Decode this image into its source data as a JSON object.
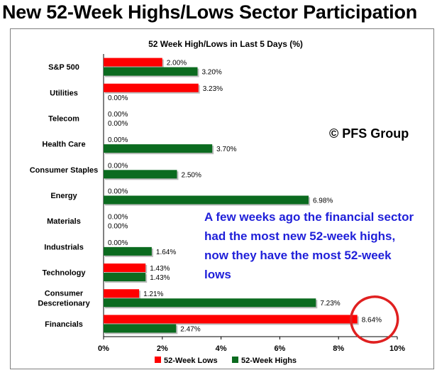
{
  "headline": "New 52-Week Highs/Lows Sector Participation",
  "copyright": "© PFS Group",
  "annotation": "A few weeks ago the financial sector had the most new 52-week highs, now they have the most 52-week lows",
  "colors": {
    "lows": "#ff0000",
    "highs": "#0b6b1f",
    "circle": "#e02020",
    "annotation": "#1f1fd9"
  },
  "chart_data": {
    "type": "bar",
    "orientation": "horizontal",
    "title": "52 Week High/Lows in Last 5 Days (%)",
    "categories": [
      "S&P 500",
      "Utilities",
      "Telecom",
      "Health Care",
      "Consumer Staples",
      "Energy",
      "Materials",
      "Industrials",
      "Technology",
      "Consumer Descretionary",
      "Financials"
    ],
    "category_lines": [
      [
        "S&P 500"
      ],
      [
        "Utilities"
      ],
      [
        "Telecom"
      ],
      [
        "Health Care"
      ],
      [
        "Consumer Staples"
      ],
      [
        "Energy"
      ],
      [
        "Materials"
      ],
      [
        "Industrials"
      ],
      [
        "Technology"
      ],
      [
        "Consumer",
        "Descretionary"
      ],
      [
        "Financials"
      ]
    ],
    "series": [
      {
        "name": "52-Week Lows",
        "color": "#ff0000",
        "values": [
          2.0,
          3.23,
          0.0,
          0.0,
          0.0,
          0.0,
          0.0,
          0.0,
          1.43,
          1.21,
          8.64
        ],
        "labels": [
          "2.00%",
          "3.23%",
          "0.00%",
          "0.00%",
          "0.00%",
          "0.00%",
          "0.00%",
          "0.00%",
          "1.43%",
          "1.21%",
          "8.64%"
        ]
      },
      {
        "name": "52-Week Highs",
        "color": "#0b6b1f",
        "values": [
          3.2,
          0.0,
          0.0,
          3.7,
          2.5,
          6.98,
          0.0,
          1.64,
          1.43,
          7.23,
          2.47
        ],
        "labels": [
          "3.20%",
          "0.00%",
          "0.00%",
          "3.70%",
          "2.50%",
          "6.98%",
          "0.00%",
          "1.64%",
          "1.43%",
          "7.23%",
          "2.47%"
        ]
      }
    ],
    "xlim": [
      0,
      10
    ],
    "xticks": [
      0,
      2,
      4,
      6,
      8,
      10
    ],
    "xtick_labels": [
      "0%",
      "2%",
      "4%",
      "6%",
      "8%",
      "10%"
    ],
    "legend": [
      "52-Week Lows",
      "52-Week Highs"
    ],
    "legend_position": "bottom",
    "highlight": "Financials 52-Week Lows circled"
  }
}
